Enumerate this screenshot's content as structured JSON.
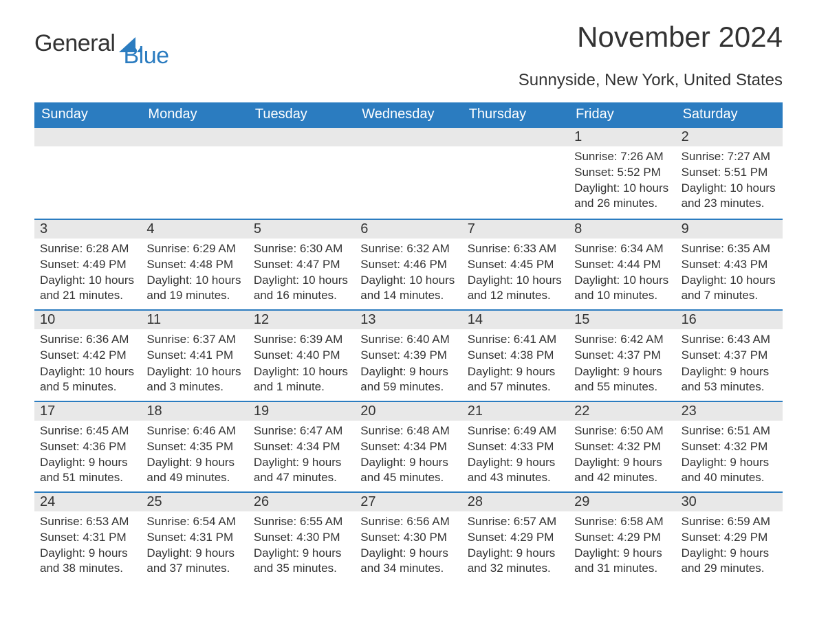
{
  "logo": {
    "text1": "General",
    "text2": "Blue"
  },
  "title": "November 2024",
  "subtitle": "Sunnyside, New York, United States",
  "colors": {
    "header_bg": "#2b7cc0",
    "header_text": "#ffffff",
    "daynum_bg": "#e8e8e8",
    "border": "#2b7cc0",
    "text": "#333333",
    "page_bg": "#ffffff"
  },
  "weekdays": [
    "Sunday",
    "Monday",
    "Tuesday",
    "Wednesday",
    "Thursday",
    "Friday",
    "Saturday"
  ],
  "weeks": [
    [
      {
        "day": "",
        "sunrise": "",
        "sunset": "",
        "daylight": ""
      },
      {
        "day": "",
        "sunrise": "",
        "sunset": "",
        "daylight": ""
      },
      {
        "day": "",
        "sunrise": "",
        "sunset": "",
        "daylight": ""
      },
      {
        "day": "",
        "sunrise": "",
        "sunset": "",
        "daylight": ""
      },
      {
        "day": "",
        "sunrise": "",
        "sunset": "",
        "daylight": ""
      },
      {
        "day": "1",
        "sunrise": "Sunrise: 7:26 AM",
        "sunset": "Sunset: 5:52 PM",
        "daylight": "Daylight: 10 hours and 26 minutes."
      },
      {
        "day": "2",
        "sunrise": "Sunrise: 7:27 AM",
        "sunset": "Sunset: 5:51 PM",
        "daylight": "Daylight: 10 hours and 23 minutes."
      }
    ],
    [
      {
        "day": "3",
        "sunrise": "Sunrise: 6:28 AM",
        "sunset": "Sunset: 4:49 PM",
        "daylight": "Daylight: 10 hours and 21 minutes."
      },
      {
        "day": "4",
        "sunrise": "Sunrise: 6:29 AM",
        "sunset": "Sunset: 4:48 PM",
        "daylight": "Daylight: 10 hours and 19 minutes."
      },
      {
        "day": "5",
        "sunrise": "Sunrise: 6:30 AM",
        "sunset": "Sunset: 4:47 PM",
        "daylight": "Daylight: 10 hours and 16 minutes."
      },
      {
        "day": "6",
        "sunrise": "Sunrise: 6:32 AM",
        "sunset": "Sunset: 4:46 PM",
        "daylight": "Daylight: 10 hours and 14 minutes."
      },
      {
        "day": "7",
        "sunrise": "Sunrise: 6:33 AM",
        "sunset": "Sunset: 4:45 PM",
        "daylight": "Daylight: 10 hours and 12 minutes."
      },
      {
        "day": "8",
        "sunrise": "Sunrise: 6:34 AM",
        "sunset": "Sunset: 4:44 PM",
        "daylight": "Daylight: 10 hours and 10 minutes."
      },
      {
        "day": "9",
        "sunrise": "Sunrise: 6:35 AM",
        "sunset": "Sunset: 4:43 PM",
        "daylight": "Daylight: 10 hours and 7 minutes."
      }
    ],
    [
      {
        "day": "10",
        "sunrise": "Sunrise: 6:36 AM",
        "sunset": "Sunset: 4:42 PM",
        "daylight": "Daylight: 10 hours and 5 minutes."
      },
      {
        "day": "11",
        "sunrise": "Sunrise: 6:37 AM",
        "sunset": "Sunset: 4:41 PM",
        "daylight": "Daylight: 10 hours and 3 minutes."
      },
      {
        "day": "12",
        "sunrise": "Sunrise: 6:39 AM",
        "sunset": "Sunset: 4:40 PM",
        "daylight": "Daylight: 10 hours and 1 minute."
      },
      {
        "day": "13",
        "sunrise": "Sunrise: 6:40 AM",
        "sunset": "Sunset: 4:39 PM",
        "daylight": "Daylight: 9 hours and 59 minutes."
      },
      {
        "day": "14",
        "sunrise": "Sunrise: 6:41 AM",
        "sunset": "Sunset: 4:38 PM",
        "daylight": "Daylight: 9 hours and 57 minutes."
      },
      {
        "day": "15",
        "sunrise": "Sunrise: 6:42 AM",
        "sunset": "Sunset: 4:37 PM",
        "daylight": "Daylight: 9 hours and 55 minutes."
      },
      {
        "day": "16",
        "sunrise": "Sunrise: 6:43 AM",
        "sunset": "Sunset: 4:37 PM",
        "daylight": "Daylight: 9 hours and 53 minutes."
      }
    ],
    [
      {
        "day": "17",
        "sunrise": "Sunrise: 6:45 AM",
        "sunset": "Sunset: 4:36 PM",
        "daylight": "Daylight: 9 hours and 51 minutes."
      },
      {
        "day": "18",
        "sunrise": "Sunrise: 6:46 AM",
        "sunset": "Sunset: 4:35 PM",
        "daylight": "Daylight: 9 hours and 49 minutes."
      },
      {
        "day": "19",
        "sunrise": "Sunrise: 6:47 AM",
        "sunset": "Sunset: 4:34 PM",
        "daylight": "Daylight: 9 hours and 47 minutes."
      },
      {
        "day": "20",
        "sunrise": "Sunrise: 6:48 AM",
        "sunset": "Sunset: 4:34 PM",
        "daylight": "Daylight: 9 hours and 45 minutes."
      },
      {
        "day": "21",
        "sunrise": "Sunrise: 6:49 AM",
        "sunset": "Sunset: 4:33 PM",
        "daylight": "Daylight: 9 hours and 43 minutes."
      },
      {
        "day": "22",
        "sunrise": "Sunrise: 6:50 AM",
        "sunset": "Sunset: 4:32 PM",
        "daylight": "Daylight: 9 hours and 42 minutes."
      },
      {
        "day": "23",
        "sunrise": "Sunrise: 6:51 AM",
        "sunset": "Sunset: 4:32 PM",
        "daylight": "Daylight: 9 hours and 40 minutes."
      }
    ],
    [
      {
        "day": "24",
        "sunrise": "Sunrise: 6:53 AM",
        "sunset": "Sunset: 4:31 PM",
        "daylight": "Daylight: 9 hours and 38 minutes."
      },
      {
        "day": "25",
        "sunrise": "Sunrise: 6:54 AM",
        "sunset": "Sunset: 4:31 PM",
        "daylight": "Daylight: 9 hours and 37 minutes."
      },
      {
        "day": "26",
        "sunrise": "Sunrise: 6:55 AM",
        "sunset": "Sunset: 4:30 PM",
        "daylight": "Daylight: 9 hours and 35 minutes."
      },
      {
        "day": "27",
        "sunrise": "Sunrise: 6:56 AM",
        "sunset": "Sunset: 4:30 PM",
        "daylight": "Daylight: 9 hours and 34 minutes."
      },
      {
        "day": "28",
        "sunrise": "Sunrise: 6:57 AM",
        "sunset": "Sunset: 4:29 PM",
        "daylight": "Daylight: 9 hours and 32 minutes."
      },
      {
        "day": "29",
        "sunrise": "Sunrise: 6:58 AM",
        "sunset": "Sunset: 4:29 PM",
        "daylight": "Daylight: 9 hours and 31 minutes."
      },
      {
        "day": "30",
        "sunrise": "Sunrise: 6:59 AM",
        "sunset": "Sunset: 4:29 PM",
        "daylight": "Daylight: 9 hours and 29 minutes."
      }
    ]
  ]
}
